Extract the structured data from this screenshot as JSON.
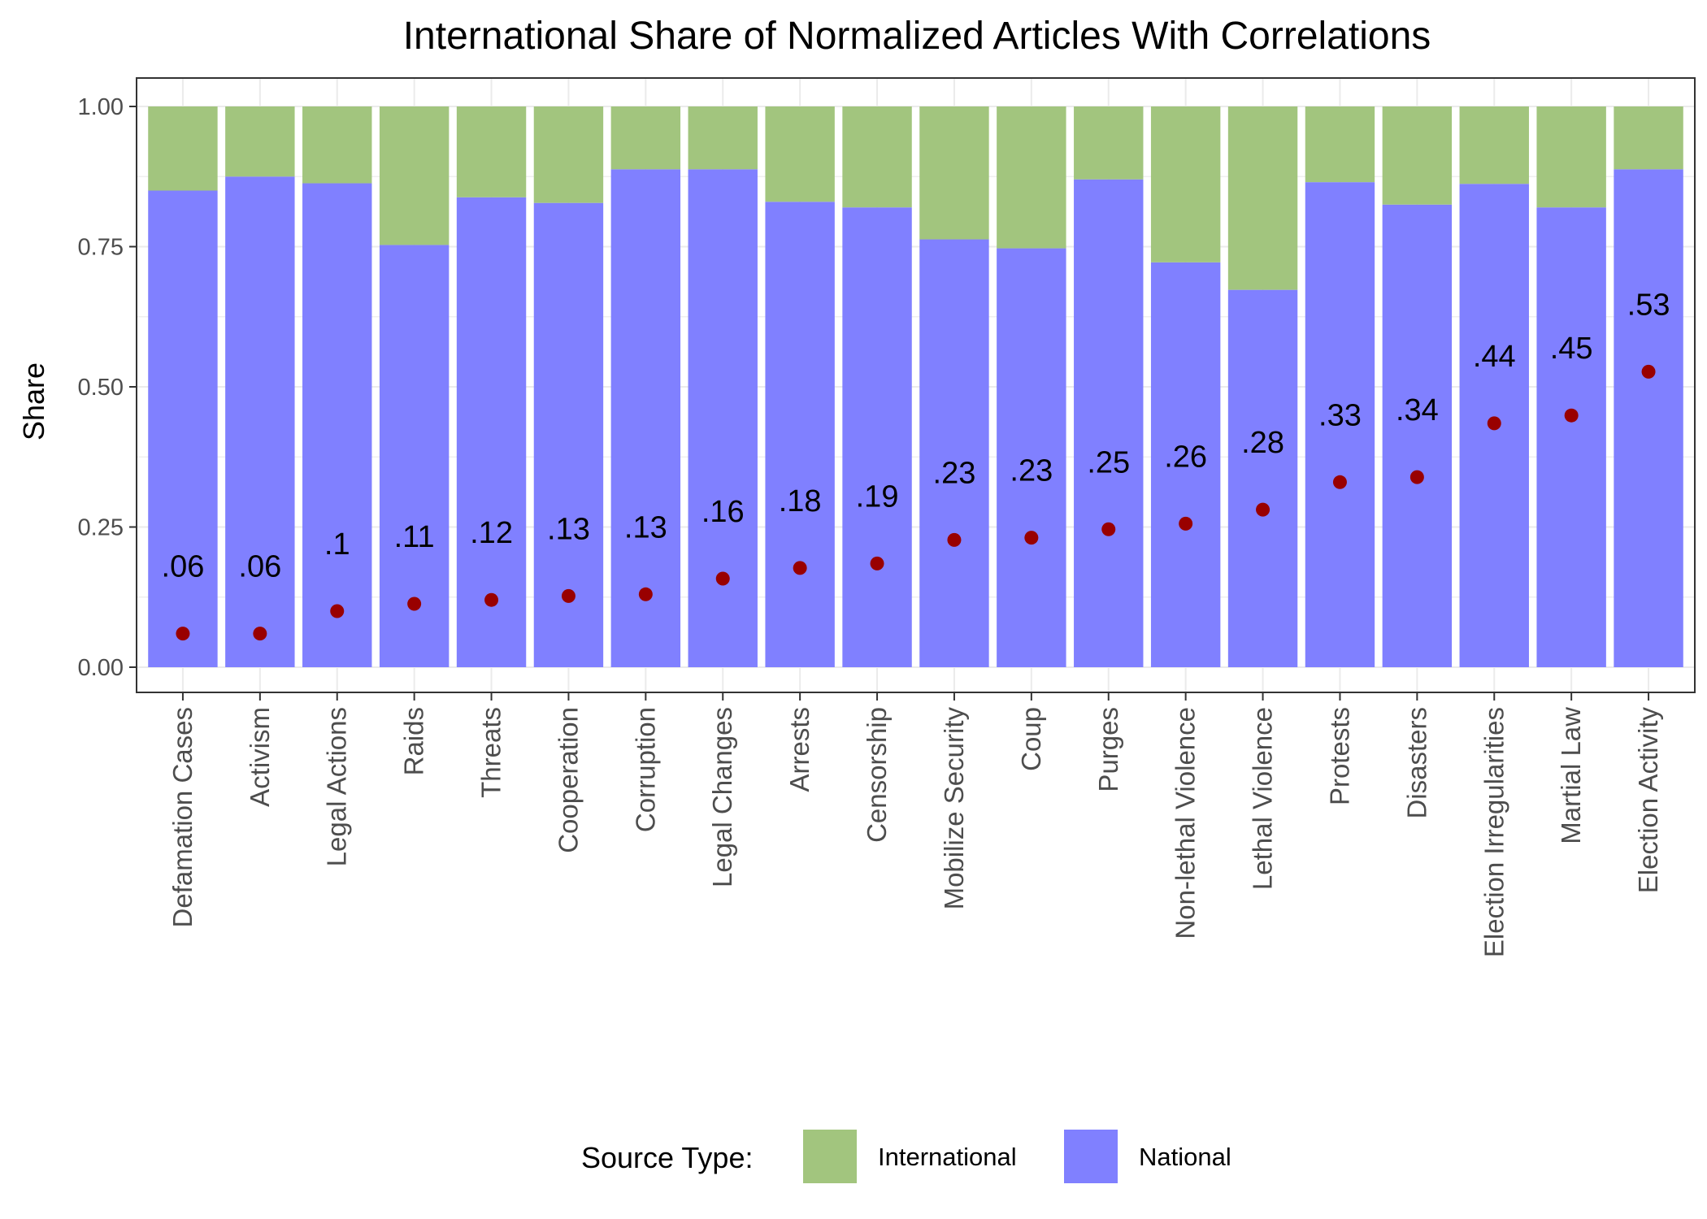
{
  "chart_data": {
    "type": "bar",
    "stacked": true,
    "title": "International Share of Normalized Articles With Correlations",
    "xlabel": "",
    "ylabel": "Share",
    "ylim": [
      0,
      1.05
    ],
    "yticks": [
      0,
      0.25,
      0.5,
      0.75,
      1.0
    ],
    "ytick_labels": [
      "0.00",
      "0.25",
      "0.50",
      "0.75",
      "1.00"
    ],
    "grid": true,
    "legend_title": "Source Type:",
    "legend_position": "bottom",
    "categories": [
      "Defamation Cases",
      "Activism",
      "Legal Actions",
      "Raids",
      "Threats",
      "Cooperation",
      "Corruption",
      "Legal Changes",
      "Arrests",
      "Censorship",
      "Mobilize Security",
      "Coup",
      "Purges",
      "Non-lethal Violence",
      "Lethal Violence",
      "Protests",
      "Disasters",
      "Election Irregularities",
      "Martial Law",
      "Election Activity"
    ],
    "series": [
      {
        "name": "National",
        "color": "#8080ff",
        "values": [
          0.85,
          0.875,
          0.863,
          0.753,
          0.838,
          0.828,
          0.888,
          0.888,
          0.83,
          0.82,
          0.763,
          0.747,
          0.87,
          0.722,
          0.673,
          0.865,
          0.825,
          0.862,
          0.82,
          0.888
        ]
      },
      {
        "name": "International",
        "color": "#a2c57e",
        "values": [
          0.15,
          0.125,
          0.137,
          0.247,
          0.162,
          0.172,
          0.112,
          0.112,
          0.17,
          0.18,
          0.237,
          0.253,
          0.13,
          0.278,
          0.327,
          0.135,
          0.175,
          0.138,
          0.18,
          0.112
        ]
      }
    ],
    "correlations": {
      "color": "#990000",
      "values": [
        0.06,
        0.06,
        0.1,
        0.113,
        0.12,
        0.127,
        0.13,
        0.158,
        0.177,
        0.185,
        0.227,
        0.231,
        0.246,
        0.256,
        0.281,
        0.33,
        0.339,
        0.435,
        0.449,
        0.527
      ],
      "labels": [
        ".06",
        ".06",
        ".1",
        ".11",
        ".12",
        ".13",
        ".13",
        ".16",
        ".18",
        ".19",
        ".23",
        ".23",
        ".25",
        ".26",
        ".28",
        ".33",
        ".34",
        ".44",
        ".45",
        ".53"
      ]
    },
    "legend_entries": [
      "International",
      "National"
    ]
  }
}
